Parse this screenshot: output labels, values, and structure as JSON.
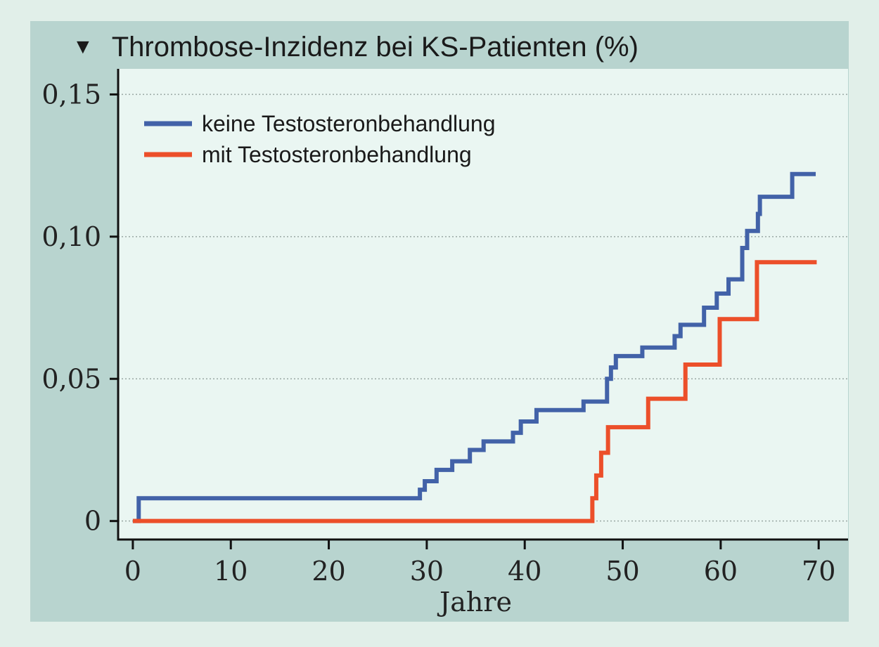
{
  "chart_data": {
    "type": "line",
    "title": "Thrombose-Inzidenz bei KS-Patienten (%)",
    "title_marker": "▼",
    "xlabel": "Jahre",
    "ylabel": "",
    "xlim": [
      -1.5,
      73
    ],
    "ylim": [
      -0.0065,
      0.159
    ],
    "x_ticks": [
      0,
      10,
      20,
      30,
      40,
      50,
      60,
      70
    ],
    "x_tick_labels": [
      "0",
      "10",
      "20",
      "30",
      "40",
      "50",
      "60",
      "70"
    ],
    "y_ticks": [
      0,
      0.05,
      0.1,
      0.15
    ],
    "y_tick_labels": [
      "0",
      "0,05",
      "0,10",
      "0,15"
    ],
    "grid": "horizontal dotted",
    "legend_position": "top-left",
    "series": [
      {
        "name": "keine Testosteronbehandlung",
        "color": "#4262a8",
        "step": true,
        "x": [
          0,
          0.6,
          29.3,
          29.8,
          31.0,
          32.6,
          34.4,
          35.8,
          38.8,
          39.6,
          41.2,
          46.0,
          48.4,
          48.8,
          49.3,
          52.0,
          55.3,
          55.9,
          58.3,
          59.6,
          60.8,
          62.2,
          62.7,
          63.8,
          64.0,
          67.3,
          69.7
        ],
        "y": [
          0,
          0.008,
          0.011,
          0.014,
          0.018,
          0.021,
          0.025,
          0.028,
          0.031,
          0.035,
          0.039,
          0.042,
          0.05,
          0.054,
          0.058,
          0.061,
          0.065,
          0.069,
          0.075,
          0.08,
          0.085,
          0.096,
          0.102,
          0.108,
          0.114,
          0.122,
          0.122
        ]
      },
      {
        "name": "mit Testosteronbehandlung",
        "color": "#ec4f2a",
        "step": true,
        "x": [
          0,
          46.9,
          47.3,
          47.8,
          48.5,
          52.6,
          56.4,
          59.9,
          63.7,
          69.8
        ],
        "y": [
          0,
          0.008,
          0.016,
          0.024,
          0.033,
          0.043,
          0.055,
          0.071,
          0.091,
          0.091
        ]
      }
    ]
  }
}
